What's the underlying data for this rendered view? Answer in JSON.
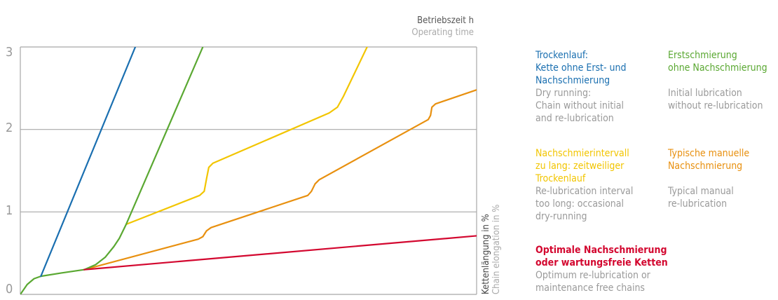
{
  "chart_data": {
    "type": "line",
    "title": "",
    "xlabel": "Betriebszeit h",
    "xlabel_en": "Operating time",
    "ylabel": "Kettenlängung in %",
    "ylabel_en": "Chain elongation in %",
    "xlim": [
      0,
      100
    ],
    "ylim": [
      0,
      3
    ],
    "yticks": [
      "0",
      "1",
      "2",
      "3"
    ],
    "grid": true,
    "legend_placement": "right",
    "series": [
      {
        "name": "Trockenlauf",
        "color": "#1a6fb0",
        "label_de": "Trockenlauf:\nKette ohne Erst- und\nNachschmierung",
        "label_en": "Dry running:\nChain without initial\nand re-lubrication",
        "points": [
          [
            4.5,
            0.22
          ],
          [
            25.2,
            3.0
          ]
        ]
      },
      {
        "name": "Erstschmierung",
        "color": "#5aa832",
        "label_de": "Erstschmierung\nohne Nachschmierung",
        "label_en": "Initial lubrication\nwithout re-lubrication",
        "points": [
          [
            0,
            0
          ],
          [
            1.5,
            0.12
          ],
          [
            3,
            0.19
          ],
          [
            4.5,
            0.22
          ],
          [
            9,
            0.26
          ],
          [
            14,
            0.3
          ],
          [
            16.5,
            0.36
          ],
          [
            18.6,
            0.45
          ],
          [
            20.5,
            0.58
          ],
          [
            21.7,
            0.68
          ],
          [
            23.2,
            0.85
          ],
          [
            40,
            3.0
          ]
        ]
      },
      {
        "name": "Nachschmierintervall zu lang",
        "color": "#f2c500",
        "label_de": "Nachschmierintervall\nzu lang: zeitweiliger\nTrockenlauf",
        "label_en": "Re-lubrication interval\ntoo long: occasional\ndry-running",
        "points": [
          [
            23.2,
            0.85
          ],
          [
            39.3,
            1.2
          ],
          [
            40.3,
            1.25
          ],
          [
            40.8,
            1.4
          ],
          [
            41.3,
            1.54
          ],
          [
            42.2,
            1.59
          ],
          [
            67.7,
            2.2
          ],
          [
            69.5,
            2.27
          ],
          [
            70.8,
            2.4
          ],
          [
            76,
            3.0
          ]
        ]
      },
      {
        "name": "Typische manuelle Nachschmierung",
        "color": "#e8900f",
        "label_de": "Typische manuelle\nNachschmierung",
        "label_en": "Typical manual\nre-lubrication",
        "points": [
          [
            14,
            0.3
          ],
          [
            39,
            0.67
          ],
          [
            40,
            0.7
          ],
          [
            40.8,
            0.77
          ],
          [
            41.8,
            0.81
          ],
          [
            63,
            1.2
          ],
          [
            63.8,
            1.25
          ],
          [
            64.6,
            1.34
          ],
          [
            65.5,
            1.39
          ],
          [
            89.4,
            2.12
          ],
          [
            89.9,
            2.17
          ],
          [
            90.2,
            2.27
          ],
          [
            91,
            2.31
          ],
          [
            100,
            2.48
          ]
        ]
      },
      {
        "name": "Optimale Nachschmierung",
        "color": "#d3072f",
        "label_de": "Optimale Nachschmierung\noder wartungsfreie Ketten",
        "label_en": "Optimum re-lubrication or\nmaintenance free chains",
        "points": [
          [
            14,
            0.3
          ],
          [
            100,
            0.71
          ]
        ]
      }
    ]
  }
}
